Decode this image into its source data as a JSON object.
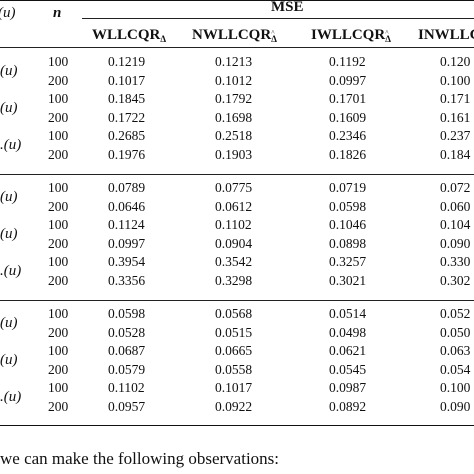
{
  "header": {
    "left_label": "(u)",
    "n_label": "n",
    "mse_label": "MSE",
    "columns": [
      {
        "main": "WLLCQR",
        "sub": "Δ",
        "hat": false
      },
      {
        "main": "NWLLCQR",
        "sub": "Δ",
        "hat": true
      },
      {
        "main": "IWLLCQR",
        "sub": "Δ",
        "hat": true
      },
      {
        "main": "INWLLC",
        "sub": "",
        "hat": false
      }
    ]
  },
  "sections": [
    {
      "rows": [
        {
          "label": "(u)",
          "n": "100",
          "v": [
            "0.1219",
            "0.1213",
            "0.1192",
            "0.120"
          ]
        },
        {
          "label": "",
          "n": "200",
          "v": [
            "0.1017",
            "0.1012",
            "0.0997",
            "0.100"
          ]
        },
        {
          "label": "(u)",
          "n": "100",
          "v": [
            "0.1845",
            "0.1792",
            "0.1701",
            "0.171"
          ]
        },
        {
          "label": "",
          "n": "200",
          "v": [
            "0.1722",
            "0.1698",
            "0.1609",
            "0.161"
          ]
        },
        {
          "label": ".(u)",
          "n": "100",
          "v": [
            "0.2685",
            "0.2518",
            "0.2346",
            "0.237"
          ]
        },
        {
          "label": "",
          "n": "200",
          "v": [
            "0.1976",
            "0.1903",
            "0.1826",
            "0.184"
          ]
        }
      ]
    },
    {
      "rows": [
        {
          "label": "(u)",
          "n": "100",
          "v": [
            "0.0789",
            "0.0775",
            "0.0719",
            "0.072"
          ]
        },
        {
          "label": "",
          "n": "200",
          "v": [
            "0.0646",
            "0.0612",
            "0.0598",
            "0.060"
          ]
        },
        {
          "label": "(u)",
          "n": "100",
          "v": [
            "0.1124",
            "0.1102",
            "0.1046",
            "0.104"
          ]
        },
        {
          "label": "",
          "n": "200",
          "v": [
            "0.0997",
            "0.0904",
            "0.0898",
            "0.090"
          ]
        },
        {
          "label": ".(u)",
          "n": "100",
          "v": [
            "0.3954",
            "0.3542",
            "0.3257",
            "0.330"
          ]
        },
        {
          "label": "",
          "n": "200",
          "v": [
            "0.3356",
            "0.3298",
            "0.3021",
            "0.302"
          ]
        }
      ]
    },
    {
      "rows": [
        {
          "label": "(u)",
          "n": "100",
          "v": [
            "0.0598",
            "0.0568",
            "0.0514",
            "0.052"
          ]
        },
        {
          "label": "",
          "n": "200",
          "v": [
            "0.0528",
            "0.0515",
            "0.0498",
            "0.050"
          ]
        },
        {
          "label": "(u)",
          "n": "100",
          "v": [
            "0.0687",
            "0.0665",
            "0.0621",
            "0.063"
          ]
        },
        {
          "label": "",
          "n": "200",
          "v": [
            "0.0579",
            "0.0558",
            "0.0545",
            "0.054"
          ]
        },
        {
          "label": ".(u)",
          "n": "100",
          "v": [
            "0.1102",
            "0.1017",
            "0.0987",
            "0.100"
          ]
        },
        {
          "label": "",
          "n": "200",
          "v": [
            "0.0957",
            "0.0922",
            "0.0892",
            "0.090"
          ]
        }
      ]
    }
  ],
  "footer": "we can make the following observations:"
}
